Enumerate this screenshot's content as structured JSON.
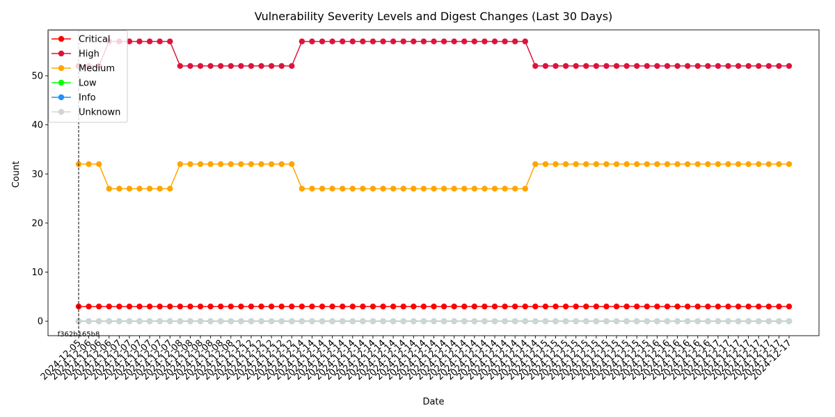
{
  "chart_data": {
    "type": "line",
    "title": "Vulnerability Severity Levels and Digest Changes (Last 30 Days)",
    "xlabel": "Date",
    "ylabel": "Count",
    "ylim": [
      -2.95,
      59.35
    ],
    "yticks": [
      0,
      10,
      20,
      30,
      40,
      50
    ],
    "grid": false,
    "legend_position": "top-left",
    "x": [
      "2024-12-05",
      "2024-12-06",
      "2024-12-06",
      "2024-12-06",
      "2024-12-07",
      "2024-12-07",
      "2024-12-07",
      "2024-12-07",
      "2024-12-07",
      "2024-12-07",
      "2024-12-08",
      "2024-12-08",
      "2024-12-08",
      "2024-12-08",
      "2024-12-08",
      "2024-12-08",
      "2024-12-12",
      "2024-12-12",
      "2024-12-12",
      "2024-12-12",
      "2024-12-12",
      "2024-12-12",
      "2024-12-14",
      "2024-12-14",
      "2024-12-14",
      "2024-12-14",
      "2024-12-14",
      "2024-12-14",
      "2024-12-14",
      "2024-12-14",
      "2024-12-14",
      "2024-12-14",
      "2024-12-14",
      "2024-12-14",
      "2024-12-14",
      "2024-12-14",
      "2024-12-14",
      "2024-12-14",
      "2024-12-14",
      "2024-12-14",
      "2024-12-14",
      "2024-12-14",
      "2024-12-14",
      "2024-12-14",
      "2024-12-14",
      "2024-12-14",
      "2024-12-15",
      "2024-12-15",
      "2024-12-15",
      "2024-12-15",
      "2024-12-15",
      "2024-12-15",
      "2024-12-15",
      "2024-12-15",
      "2024-12-15",
      "2024-12-15",
      "2024-12-15",
      "2024-12-16",
      "2024-12-16",
      "2024-12-16",
      "2024-12-16",
      "2024-12-16",
      "2024-12-16",
      "2024-12-17",
      "2024-12-17",
      "2024-12-17",
      "2024-12-17",
      "2024-12-17",
      "2024-12-17",
      "2024-12-17",
      "2024-12-17"
    ],
    "series": [
      {
        "name": "Critical",
        "color": "#ff0000",
        "values": [
          3,
          3,
          3,
          3,
          3,
          3,
          3,
          3,
          3,
          3,
          3,
          3,
          3,
          3,
          3,
          3,
          3,
          3,
          3,
          3,
          3,
          3,
          3,
          3,
          3,
          3,
          3,
          3,
          3,
          3,
          3,
          3,
          3,
          3,
          3,
          3,
          3,
          3,
          3,
          3,
          3,
          3,
          3,
          3,
          3,
          3,
          3,
          3,
          3,
          3,
          3,
          3,
          3,
          3,
          3,
          3,
          3,
          3,
          3,
          3,
          3,
          3,
          3,
          3,
          3,
          3,
          3,
          3,
          3,
          3,
          3
        ]
      },
      {
        "name": "High",
        "color": "#dc143c",
        "values": [
          52,
          52,
          52,
          57,
          57,
          57,
          57,
          57,
          57,
          57,
          52,
          52,
          52,
          52,
          52,
          52,
          52,
          52,
          52,
          52,
          52,
          52,
          57,
          57,
          57,
          57,
          57,
          57,
          57,
          57,
          57,
          57,
          57,
          57,
          57,
          57,
          57,
          57,
          57,
          57,
          57,
          57,
          57,
          57,
          57,
          52,
          52,
          52,
          52,
          52,
          52,
          52,
          52,
          52,
          52,
          52,
          52,
          52,
          52,
          52,
          52,
          52,
          52,
          52,
          52,
          52,
          52,
          52,
          52,
          52,
          52
        ]
      },
      {
        "name": "Medium",
        "color": "#ffa500",
        "values": [
          32,
          32,
          32,
          27,
          27,
          27,
          27,
          27,
          27,
          27,
          32,
          32,
          32,
          32,
          32,
          32,
          32,
          32,
          32,
          32,
          32,
          32,
          27,
          27,
          27,
          27,
          27,
          27,
          27,
          27,
          27,
          27,
          27,
          27,
          27,
          27,
          27,
          27,
          27,
          27,
          27,
          27,
          27,
          27,
          27,
          32,
          32,
          32,
          32,
          32,
          32,
          32,
          32,
          32,
          32,
          32,
          32,
          32,
          32,
          32,
          32,
          32,
          32,
          32,
          32,
          32,
          32,
          32,
          32,
          32,
          32
        ]
      },
      {
        "name": "Low",
        "color": "#00ff00",
        "values": [
          0,
          0,
          0,
          0,
          0,
          0,
          0,
          0,
          0,
          0,
          0,
          0,
          0,
          0,
          0,
          0,
          0,
          0,
          0,
          0,
          0,
          0,
          0,
          0,
          0,
          0,
          0,
          0,
          0,
          0,
          0,
          0,
          0,
          0,
          0,
          0,
          0,
          0,
          0,
          0,
          0,
          0,
          0,
          0,
          0,
          0,
          0,
          0,
          0,
          0,
          0,
          0,
          0,
          0,
          0,
          0,
          0,
          0,
          0,
          0,
          0,
          0,
          0,
          0,
          0,
          0,
          0,
          0,
          0,
          0,
          0
        ]
      },
      {
        "name": "Info",
        "color": "#1e90ff",
        "values": [
          0,
          0,
          0,
          0,
          0,
          0,
          0,
          0,
          0,
          0,
          0,
          0,
          0,
          0,
          0,
          0,
          0,
          0,
          0,
          0,
          0,
          0,
          0,
          0,
          0,
          0,
          0,
          0,
          0,
          0,
          0,
          0,
          0,
          0,
          0,
          0,
          0,
          0,
          0,
          0,
          0,
          0,
          0,
          0,
          0,
          0,
          0,
          0,
          0,
          0,
          0,
          0,
          0,
          0,
          0,
          0,
          0,
          0,
          0,
          0,
          0,
          0,
          0,
          0,
          0,
          0,
          0,
          0,
          0,
          0,
          0
        ]
      },
      {
        "name": "Unknown",
        "color": "#d3d3d3",
        "values": [
          0,
          0,
          0,
          0,
          0,
          0,
          0,
          0,
          0,
          0,
          0,
          0,
          0,
          0,
          0,
          0,
          0,
          0,
          0,
          0,
          0,
          0,
          0,
          0,
          0,
          0,
          0,
          0,
          0,
          0,
          0,
          0,
          0,
          0,
          0,
          0,
          0,
          0,
          0,
          0,
          0,
          0,
          0,
          0,
          0,
          0,
          0,
          0,
          0,
          0,
          0,
          0,
          0,
          0,
          0,
          0,
          0,
          0,
          0,
          0,
          0,
          0,
          0,
          0,
          0,
          0,
          0,
          0,
          0,
          0,
          0
        ]
      }
    ],
    "annotations": [
      {
        "x_index": 0,
        "label": "f362b165b8",
        "style": "dashed vertical line"
      }
    ]
  }
}
